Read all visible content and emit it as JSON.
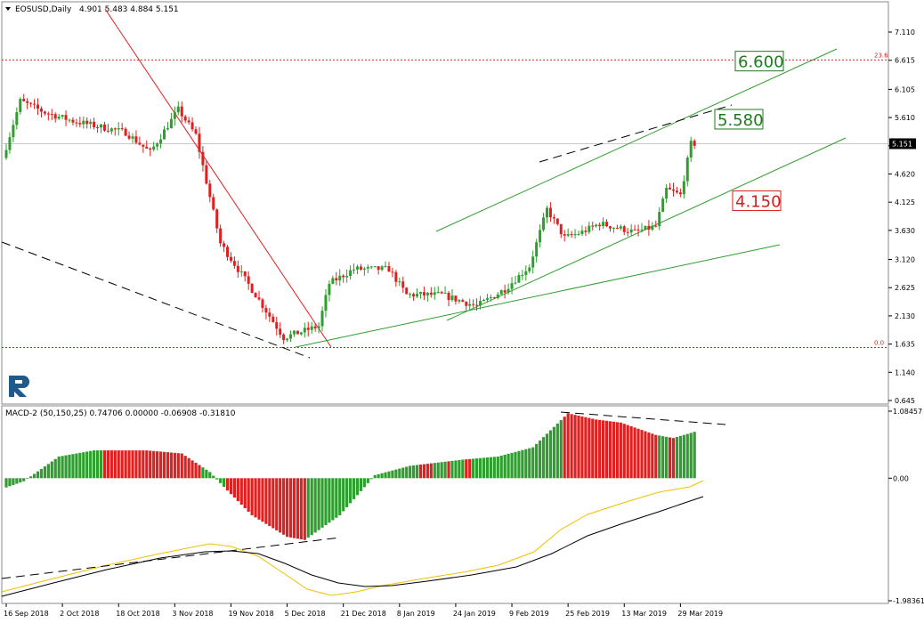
{
  "chart_data": [
    {
      "type": "candlestick",
      "header": {
        "symbol": "EOSUSD,Daily",
        "ohlc": "4.901 5.483 4.884 5.151"
      },
      "y_ticks": [
        "7.110",
        "6.615",
        "6.105",
        "5.610",
        "5.115",
        "4.620",
        "4.125",
        "3.630",
        "3.120",
        "2.625",
        "2.130",
        "1.635",
        "1.140",
        "0.645"
      ],
      "current_price": "5.151",
      "ylim": [
        0.645,
        7.36
      ],
      "fib_levels": [
        {
          "label": "23.6",
          "value": 6.62
        },
        {
          "label": "0.0",
          "value": 1.575
        }
      ],
      "level_labels": [
        {
          "text": "6.600",
          "color": "#1f7a1f",
          "price": 6.6
        },
        {
          "text": "5.580",
          "color": "#1f7a1f",
          "price": 5.58
        },
        {
          "text": "4.150",
          "color": "#d81b1b",
          "price": 4.15
        }
      ],
      "grid": false
    },
    {
      "type": "bar",
      "header": "MACD-2 (50,150,25) 0.74706 0.00000 -0.06908 -0.31810",
      "y_ticks": [
        "1.08457",
        "0.00",
        "-1.98361"
      ],
      "ylim": [
        -1.98361,
        1.08457
      ]
    }
  ],
  "x_axis": {
    "ticks": [
      "16 Sep 2018",
      "2 Oct 2018",
      "18 Oct 2018",
      "3 Nov 2018",
      "19 Nov 2018",
      "5 Dec 2018",
      "21 Dec 2018",
      "8 Jan 2019",
      "24 Jan 2019",
      "9 Feb 2019",
      "25 Feb 2019",
      "13 Mar 2019",
      "29 Mar 2019"
    ]
  },
  "logo": {
    "icon": "roboforex-logo-icon",
    "color": "#1e5a8c"
  },
  "colors": {
    "bull": "#2e9e2e",
    "bear": "#e02020",
    "channel": "#2e9e2e",
    "trend_red": "#e02020",
    "signal": "#f0c000",
    "macd_line": "#000000"
  }
}
